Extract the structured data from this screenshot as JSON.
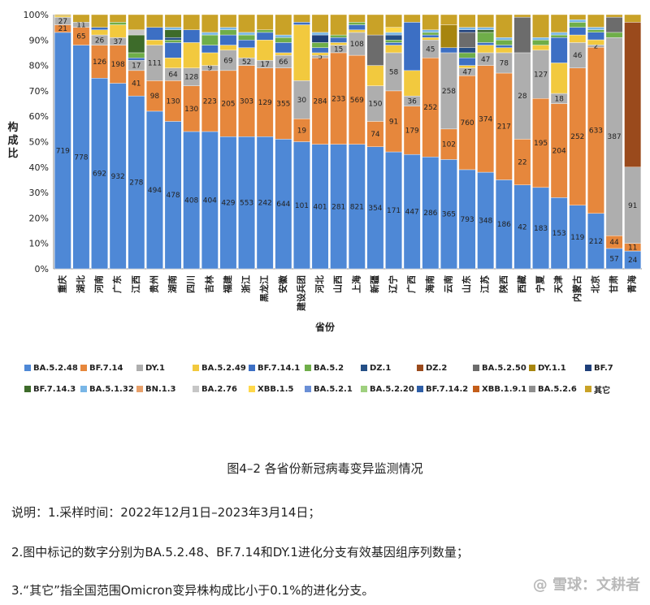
{
  "chart_data": {
    "type": "bar",
    "stacked": true,
    "ylabel": "构成比",
    "xlabel": "省份",
    "yticks": [
      "0%",
      "10%",
      "20%",
      "30%",
      "40%",
      "50%",
      "60%",
      "70%",
      "80%",
      "90%",
      "100%"
    ],
    "ylim": [
      0,
      100
    ],
    "categories": [
      "重庆",
      "湖北",
      "河南",
      "广东",
      "江西",
      "贵州",
      "湖南",
      "四川",
      "吉林",
      "福建",
      "浙江",
      "黑龙江",
      "安徽",
      "建设兵团",
      "河北",
      "山西",
      "上海",
      "新疆",
      "辽宁",
      "广西",
      "海南",
      "云南",
      "山东",
      "江苏",
      "陕西",
      "西藏",
      "宁夏",
      "天津",
      "内蒙古",
      "北京",
      "甘肃",
      "青海"
    ],
    "series": [
      {
        "name": "BA.5.2.48",
        "color": "#4e88d6",
        "values": [
          93,
          88,
          75,
          73,
          68,
          62,
          58,
          54,
          54,
          52,
          52,
          52,
          51,
          50,
          49,
          49,
          49,
          48,
          46,
          45,
          44,
          43,
          39,
          38,
          35,
          33,
          32,
          28,
          25,
          22,
          8,
          7
        ],
        "labels": [
          "719",
          "778",
          "692",
          "932",
          "278",
          "494",
          "478",
          "408",
          "404",
          "429",
          "553",
          "242",
          "644",
          "101",
          "401",
          "281",
          "821",
          "354",
          "171",
          "447",
          "286",
          "365",
          "793",
          "348",
          "186",
          "42",
          "183",
          "153",
          "119",
          "212",
          "57",
          "24"
        ]
      },
      {
        "name": "BF.7.14",
        "color": "#e6873c",
        "values": [
          3,
          7,
          13,
          15,
          10,
          12,
          16,
          18,
          24,
          26,
          28,
          27,
          28,
          9,
          34,
          36,
          35,
          10,
          24,
          19,
          39,
          12,
          37,
          42,
          42,
          18,
          35,
          37,
          54,
          66,
          5,
          3
        ],
        "labels": [
          "21",
          "65",
          "126",
          "198",
          "41",
          "98",
          "130",
          "130",
          "223",
          "205",
          "303",
          "129",
          "355",
          "19",
          "284",
          "233",
          "569",
          "74",
          "91",
          "179",
          "252",
          "102",
          "760",
          "374",
          "217",
          "22",
          "195",
          "204",
          "252",
          "633",
          "44",
          "11"
        ]
      },
      {
        "name": "DY.1",
        "color": "#aeaeae",
        "values": [
          3,
          2,
          4,
          3,
          4,
          14,
          5,
          7,
          2,
          8,
          3,
          3,
          5,
          15,
          1,
          3,
          9,
          14,
          15,
          4,
          7,
          30,
          3,
          5,
          8,
          34,
          19,
          4,
          10,
          1,
          78,
          30
        ],
        "labels": [
          "27",
          "11",
          "26",
          "37",
          "17",
          "111",
          "64",
          "128",
          "9",
          "69",
          "52",
          "17",
          "66",
          "30",
          "5",
          "15",
          "108",
          "150",
          "58",
          "36",
          "45",
          "258",
          "47",
          "47",
          "78",
          "28",
          "127",
          "18",
          "46",
          "2",
          "387",
          "91"
        ]
      },
      {
        "name": "BA.5.2.49",
        "color": "#f2c93e",
        "values": [
          0.5,
          0,
          2,
          5,
          0,
          2,
          4,
          10,
          5,
          2,
          4,
          8,
          1,
          22,
          1,
          1,
          1,
          8,
          3,
          10,
          1,
          0,
          1,
          3,
          2,
          0,
          2,
          12,
          3,
          2,
          0,
          0
        ]
      },
      {
        "name": "BF.7.14.1",
        "color": "#3c6fc4",
        "values": [
          0,
          0,
          1,
          0,
          1,
          5,
          6,
          5,
          3,
          4,
          3,
          3,
          4,
          1,
          2,
          2,
          2,
          0,
          1,
          19,
          1,
          2,
          3,
          1,
          1,
          0,
          0,
          10,
          3,
          3,
          0,
          0
        ]
      },
      {
        "name": "BA.5.2",
        "color": "#6fae49",
        "values": [
          0,
          0,
          0,
          1,
          2,
          0,
          1,
          0,
          4,
          2,
          2,
          1,
          2,
          0,
          2,
          1,
          1,
          0,
          1,
          0,
          1,
          0,
          2,
          4,
          2,
          0,
          2,
          1,
          2,
          1,
          2,
          0
        ]
      },
      {
        "name": "DZ.1",
        "color": "#254f86",
        "values": [
          0,
          0,
          0,
          0,
          0,
          0,
          1,
          0,
          0,
          0,
          0,
          0,
          0,
          0,
          0,
          0,
          0,
          0,
          2,
          0,
          0,
          0,
          2,
          0,
          0,
          0,
          0,
          0,
          0,
          0,
          0,
          0
        ]
      },
      {
        "name": "DZ.2",
        "color": "#9a4a1c",
        "values": [
          0,
          0,
          0,
          0,
          0,
          0,
          0,
          0,
          0,
          0,
          0,
          0,
          0,
          0,
          0,
          0,
          0,
          0,
          0,
          0,
          0,
          0,
          0,
          0,
          0,
          0,
          0,
          0,
          0,
          0,
          0,
          57
        ]
      },
      {
        "name": "BA.5.2.50",
        "color": "#6c6c6c",
        "values": [
          0,
          0,
          0,
          0,
          0,
          0,
          0,
          0,
          0,
          0,
          0,
          0,
          0,
          0,
          0,
          0,
          0,
          12,
          0,
          0,
          0,
          0,
          6,
          0,
          0,
          14,
          0,
          0,
          0,
          0,
          6,
          0
        ]
      },
      {
        "name": "DY.1.1",
        "color": "#a7850e",
        "values": [
          0,
          0,
          0,
          0,
          0,
          0,
          0,
          0,
          0,
          0,
          0,
          0,
          0,
          0,
          0,
          0,
          0,
          0,
          0,
          0,
          0,
          9,
          0,
          0,
          0,
          0,
          0,
          0,
          0,
          0,
          0,
          0
        ]
      },
      {
        "name": "BF.7",
        "color": "#1e3f7a",
        "values": [
          0,
          0,
          0,
          0,
          0,
          0,
          0,
          0,
          0,
          0,
          0,
          0,
          0,
          0,
          3,
          0,
          0,
          0,
          0,
          0,
          0,
          0,
          1,
          0,
          0,
          0,
          0,
          0,
          0,
          0,
          0,
          0
        ]
      },
      {
        "name": "BF.7.14.3",
        "color": "#3d6b2a",
        "values": [
          0,
          0,
          0,
          0,
          7,
          0,
          3,
          0,
          0,
          0,
          0,
          0,
          0,
          0,
          0,
          0,
          0,
          0,
          0,
          0,
          0,
          0,
          0,
          1,
          0,
          0,
          0,
          0,
          0,
          0,
          0,
          0
        ]
      },
      {
        "name": "BA.5.1.32",
        "color": "#79b6e6",
        "values": [
          0,
          0,
          0,
          0,
          0,
          0,
          1,
          0,
          1,
          1,
          1,
          0,
          1,
          0,
          1,
          0,
          0,
          0,
          1,
          0,
          1,
          0,
          1,
          1,
          1,
          0,
          1,
          1,
          1,
          1,
          0,
          0
        ]
      },
      {
        "name": "BN.1.3",
        "color": "#e8a06a",
        "values": [
          0,
          0,
          0,
          0,
          0,
          0,
          0,
          0,
          0,
          0,
          0,
          0,
          0,
          0,
          0,
          0,
          0,
          0,
          0,
          0,
          0,
          0,
          0,
          0,
          0,
          0,
          0,
          0,
          0,
          0,
          0,
          0
        ]
      },
      {
        "name": "BA.2.76",
        "color": "#c6c6c6",
        "values": [
          0,
          0,
          0,
          0,
          2,
          0,
          0,
          0,
          0,
          0,
          0,
          0,
          0,
          0,
          0,
          0,
          0,
          0,
          0,
          0,
          0,
          0,
          0,
          0,
          0,
          0,
          0,
          0,
          0,
          0,
          0,
          0
        ]
      },
      {
        "name": "XBB.1.5",
        "color": "#ffd84a",
        "values": [
          0,
          0,
          0,
          0,
          0,
          0,
          0,
          0,
          0,
          0,
          0,
          0,
          0,
          0,
          0,
          0,
          0,
          0,
          2,
          0,
          0,
          0,
          0,
          0,
          0,
          0,
          0,
          0,
          0,
          0,
          0,
          0
        ]
      },
      {
        "name": "BA.5.2.1",
        "color": "#6a8fd6",
        "values": [
          0,
          0,
          0,
          0,
          0,
          0,
          0,
          0,
          0,
          0,
          0,
          0,
          0,
          0,
          0,
          0,
          0,
          0,
          0,
          0,
          0,
          0,
          0,
          0,
          0,
          0,
          0,
          0,
          0,
          0,
          0,
          0
        ]
      },
      {
        "name": "BA.5.2.20",
        "color": "#9fd07f",
        "values": [
          0,
          0,
          0,
          0,
          0,
          0,
          0,
          0,
          0,
          0,
          0,
          0,
          0,
          0,
          0,
          0,
          0,
          0,
          0,
          0,
          0,
          0,
          0,
          0,
          0,
          0,
          0,
          0,
          0,
          0,
          0,
          0
        ]
      },
      {
        "name": "BF.7.14.2",
        "color": "#2f5fa8",
        "values": [
          0,
          0,
          0,
          0,
          0,
          0,
          0,
          0,
          0,
          0,
          0,
          0,
          0,
          0,
          0,
          0,
          0,
          0,
          0,
          0,
          0,
          0,
          0,
          0,
          0,
          0,
          0,
          0,
          0,
          0,
          0,
          0
        ]
      },
      {
        "name": "XBB.1.9.1",
        "color": "#c45e1a",
        "values": [
          0,
          0,
          0,
          0,
          0,
          0,
          0,
          0,
          0,
          0,
          0,
          0,
          0,
          0,
          0,
          0,
          0,
          0,
          0,
          0,
          0,
          0,
          0,
          0,
          0,
          0,
          0,
          0,
          0,
          0,
          0,
          0
        ]
      },
      {
        "name": "BA.5.2.6",
        "color": "#8e8e8e",
        "values": [
          0,
          0,
          0,
          0,
          0,
          0,
          0,
          0,
          0,
          0,
          0,
          0,
          0,
          0,
          0,
          0,
          0,
          0,
          0,
          0,
          0,
          0,
          0,
          0,
          0,
          0,
          0,
          0,
          0,
          0,
          0,
          0
        ]
      },
      {
        "name": "其它",
        "color": "#c9a227",
        "values": [
          0.5,
          3,
          5,
          3,
          6,
          5,
          5,
          6,
          7,
          5,
          7,
          6,
          8,
          3,
          7,
          8,
          3,
          8,
          5,
          3,
          6,
          4,
          5,
          5,
          9,
          1,
          9,
          7,
          2,
          5,
          1,
          3
        ]
      }
    ]
  },
  "caption": "图4–2 各省份新冠病毒变异监测情况",
  "notes": {
    "n1": "说明：1.采样时间：2022年12月1日–2023年3月14日；",
    "n2": "2.图中标记的数字分别为BA.5.2.48、BF.7.14和DY.1进化分支有效基因组序列数量；",
    "n3": "3.“其它”指全国范围Omicron变异株构成比小于0.1%的进化分支。"
  },
  "watermark": "@ 雪球：文耕者"
}
